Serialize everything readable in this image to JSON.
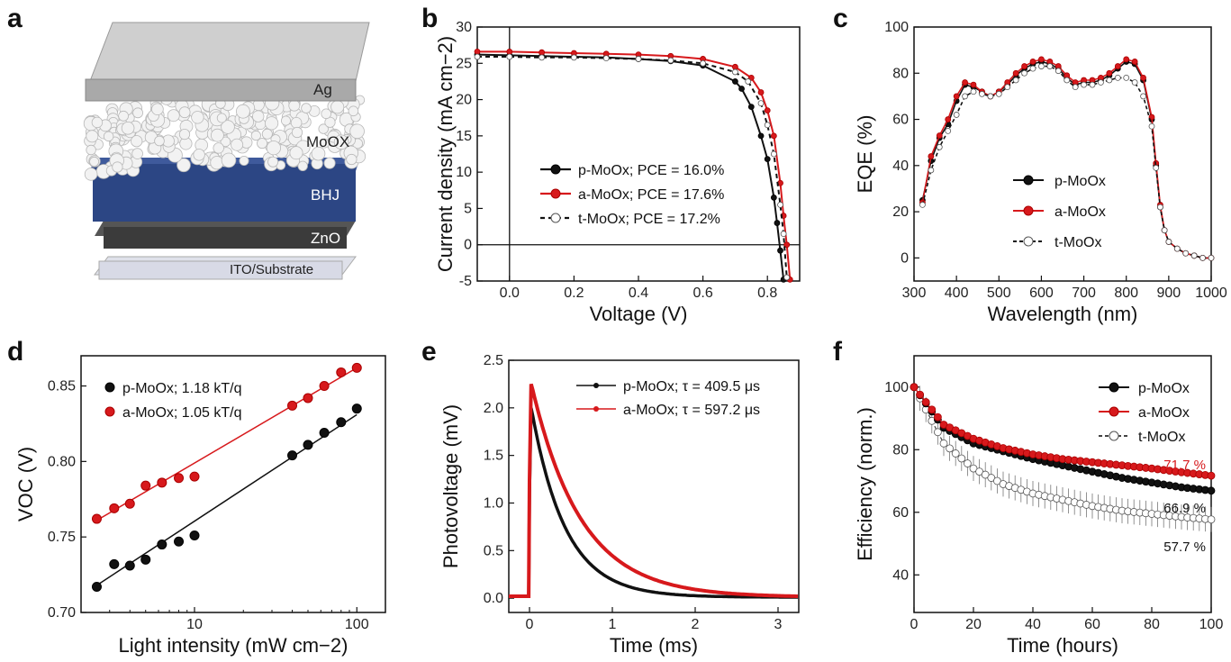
{
  "panels": [
    "a",
    "b",
    "c",
    "d",
    "e",
    "f"
  ],
  "device": {
    "layers": [
      "Ag",
      "MoOX",
      "BHJ",
      "ZnO",
      "ITO/Substrate"
    ],
    "colors": {
      "Ag": "#bfbfbf",
      "MoOX": "#e6e6e6",
      "BHJ": "#2e4a8c",
      "ZnO": "#404040",
      "ITO": "#c9cde3"
    }
  },
  "colors": {
    "p": "#111111",
    "a": "#d7191c",
    "t": "#ffffff"
  },
  "chart_data": [
    {
      "panel": "b",
      "type": "line",
      "xlabel": "Voltage (V)",
      "ylabel": "Current density (mA cm−2)",
      "xlim": [
        -0.1,
        0.9
      ],
      "ylim": [
        -5,
        30
      ],
      "xticks": [
        "0.0",
        "0.2",
        "0.4",
        "0.6",
        "0.8"
      ],
      "yticks": [
        "-5",
        "0",
        "5",
        "10",
        "15",
        "20",
        "25",
        "30"
      ],
      "series": [
        {
          "name": "p-MoOx; PCE = 16.0%",
          "x": [
            -0.1,
            0,
            0.1,
            0.2,
            0.3,
            0.4,
            0.5,
            0.6,
            0.7,
            0.72,
            0.75,
            0.78,
            0.8,
            0.82,
            0.83,
            0.84,
            0.85
          ],
          "y": [
            26.2,
            26.1,
            26.0,
            25.9,
            25.8,
            25.6,
            25.3,
            24.7,
            22.5,
            21.5,
            19,
            15,
            11.8,
            6.5,
            3,
            -0.8,
            -4.8
          ]
        },
        {
          "name": "a-MoOx; PCE = 17.6%",
          "x": [
            -0.1,
            0,
            0.1,
            0.2,
            0.3,
            0.4,
            0.5,
            0.6,
            0.7,
            0.75,
            0.78,
            0.8,
            0.82,
            0.84,
            0.85,
            0.86,
            0.87
          ],
          "y": [
            26.6,
            26.6,
            26.5,
            26.4,
            26.3,
            26.2,
            26.0,
            25.6,
            24.5,
            23,
            21,
            18.5,
            15,
            8.5,
            4,
            0,
            -4.8
          ]
        },
        {
          "name": "t-MoOx; PCE = 17.2%",
          "x": [
            -0.1,
            0,
            0.1,
            0.2,
            0.3,
            0.4,
            0.5,
            0.6,
            0.7,
            0.74,
            0.78,
            0.8,
            0.82,
            0.84,
            0.85,
            0.86
          ],
          "y": [
            25.9,
            25.9,
            25.8,
            25.8,
            25.7,
            25.6,
            25.4,
            25.0,
            23.8,
            22.5,
            19.5,
            16.5,
            12.5,
            5.5,
            1.5,
            -4.5
          ]
        }
      ]
    },
    {
      "panel": "c",
      "type": "line",
      "xlabel": "Wavelength (nm)",
      "ylabel": "EQE (%)",
      "xlim": [
        300,
        1000
      ],
      "ylim": [
        -10,
        100
      ],
      "xticks": [
        "300",
        "400",
        "500",
        "600",
        "700",
        "800",
        "900",
        "1000"
      ],
      "yticks": [
        "0",
        "20",
        "40",
        "60",
        "80",
        "100"
      ],
      "series": [
        {
          "name": "p-MoOx",
          "x": [
            320,
            340,
            360,
            380,
            400,
            420,
            440,
            460,
            480,
            500,
            520,
            540,
            560,
            580,
            600,
            620,
            640,
            660,
            680,
            700,
            720,
            740,
            760,
            780,
            800,
            820,
            840,
            860,
            870,
            880,
            890,
            900,
            920,
            940,
            960,
            980,
            1000
          ],
          "y": [
            25,
            42,
            52,
            58,
            68,
            75,
            74,
            72,
            70,
            72,
            75,
            79,
            82,
            84,
            85,
            84,
            82,
            78,
            75,
            76,
            76,
            77,
            79,
            82,
            85,
            84,
            77,
            60,
            40,
            22,
            12,
            7,
            4,
            2,
            1,
            0,
            0
          ]
        },
        {
          "name": "a-MoOx",
          "x": [
            320,
            340,
            360,
            380,
            400,
            420,
            440,
            460,
            480,
            500,
            520,
            540,
            560,
            580,
            600,
            620,
            640,
            660,
            680,
            700,
            720,
            740,
            760,
            780,
            800,
            820,
            840,
            860,
            870,
            880,
            890,
            900,
            920,
            940,
            960,
            980,
            1000
          ],
          "y": [
            24,
            44,
            53,
            60,
            70,
            76,
            75,
            72,
            70,
            72,
            76,
            80,
            83,
            85,
            86,
            85,
            83,
            79,
            76,
            77,
            77,
            78,
            80,
            83,
            86,
            85,
            78,
            61,
            41,
            23,
            12,
            7,
            4,
            2,
            1,
            0,
            0
          ]
        },
        {
          "name": "t-MoOx",
          "x": [
            320,
            340,
            360,
            380,
            400,
            420,
            440,
            460,
            480,
            500,
            520,
            540,
            560,
            580,
            600,
            620,
            640,
            660,
            680,
            700,
            720,
            740,
            760,
            780,
            800,
            820,
            840,
            860,
            870,
            880,
            890,
            900,
            920,
            940,
            960,
            980,
            1000
          ],
          "y": [
            23,
            38,
            48,
            55,
            62,
            70,
            72,
            71,
            70,
            71,
            74,
            77,
            80,
            82,
            83,
            83,
            81,
            77,
            74,
            75,
            75,
            76,
            77,
            78,
            78,
            76,
            70,
            57,
            39,
            22,
            12,
            7,
            4,
            2,
            1,
            0,
            0
          ]
        }
      ]
    },
    {
      "panel": "d",
      "type": "scatter",
      "xscale": "log",
      "xlabel": "Light intensity (mW cm−2)",
      "ylabel": "VOC (V)",
      "xlim": [
        2,
        150
      ],
      "ylim": [
        0.7,
        0.87
      ],
      "xticks": [
        "10",
        "100"
      ],
      "yticks": [
        "0.70",
        "0.75",
        "0.80",
        "0.85"
      ],
      "series": [
        {
          "name": "p-MoOx; 1.18 kT/q",
          "x": [
            2.5,
            3.2,
            4,
            5,
            6.3,
            8,
            10,
            40,
            50,
            63,
            80,
            100
          ],
          "y": [
            0.717,
            0.732,
            0.731,
            0.735,
            0.745,
            0.747,
            0.751,
            0.804,
            0.811,
            0.819,
            0.826,
            0.835
          ],
          "fit": [
            [
              2.5,
              0.718
            ],
            [
              100,
              0.831
            ]
          ]
        },
        {
          "name": "a-MoOx; 1.05 kT/q",
          "x": [
            2.5,
            3.2,
            4,
            5,
            6.3,
            8,
            10,
            40,
            50,
            63,
            80,
            100
          ],
          "y": [
            0.762,
            0.769,
            0.772,
            0.784,
            0.786,
            0.789,
            0.79,
            0.837,
            0.842,
            0.85,
            0.859,
            0.862
          ],
          "fit": [
            [
              2.5,
              0.761
            ],
            [
              100,
              0.862
            ]
          ]
        }
      ]
    },
    {
      "panel": "e",
      "type": "line",
      "xlabel": "Time (ms)",
      "ylabel": "Photovoltage (mV)",
      "xlim": [
        -0.25,
        3.25
      ],
      "ylim": [
        -0.15,
        2.5
      ],
      "xticks": [
        "0",
        "1",
        "2",
        "3"
      ],
      "yticks": [
        "0.0",
        "0.5",
        "1.0",
        "1.5",
        "2.0",
        "2.5"
      ],
      "series": [
        {
          "name": "p-MoOx; τ = 409.5 μs",
          "peak": 2.0,
          "tau": 0.4095
        },
        {
          "name": "a-MoOx; τ = 597.2 μs",
          "peak": 2.25,
          "tau": 0.5972
        }
      ]
    },
    {
      "panel": "f",
      "type": "line",
      "xlabel": "Time (hours)",
      "ylabel": "Efficiency (norm.)",
      "xlim": [
        0,
        100
      ],
      "ylim": [
        28,
        110
      ],
      "xticks": [
        "0",
        "20",
        "40",
        "60",
        "80",
        "100"
      ],
      "yticks": [
        "40",
        "60",
        "80",
        "100"
      ],
      "series": [
        {
          "name": "p-MoOx",
          "x": [
            0,
            10,
            20,
            30,
            40,
            50,
            60,
            70,
            80,
            90,
            100
          ],
          "y": [
            100,
            87,
            82,
            79.5,
            77,
            75,
            73,
            71,
            69.5,
            68,
            66.9
          ],
          "end_label": "66.9 %"
        },
        {
          "name": "a-MoOx",
          "x": [
            0,
            10,
            20,
            30,
            40,
            50,
            60,
            70,
            80,
            90,
            100
          ],
          "y": [
            100,
            88,
            83.5,
            80.5,
            78.5,
            77,
            76,
            75,
            74,
            72.8,
            71.7
          ],
          "end_label": "71.7 %"
        },
        {
          "name": "t-MoOx",
          "x": [
            0,
            10,
            20,
            30,
            40,
            50,
            60,
            70,
            80,
            90,
            100
          ],
          "y": [
            100,
            82,
            74,
            69,
            66,
            64,
            62,
            60.5,
            59.5,
            58.5,
            57.7
          ],
          "end_label": "57.7 %"
        }
      ]
    }
  ]
}
